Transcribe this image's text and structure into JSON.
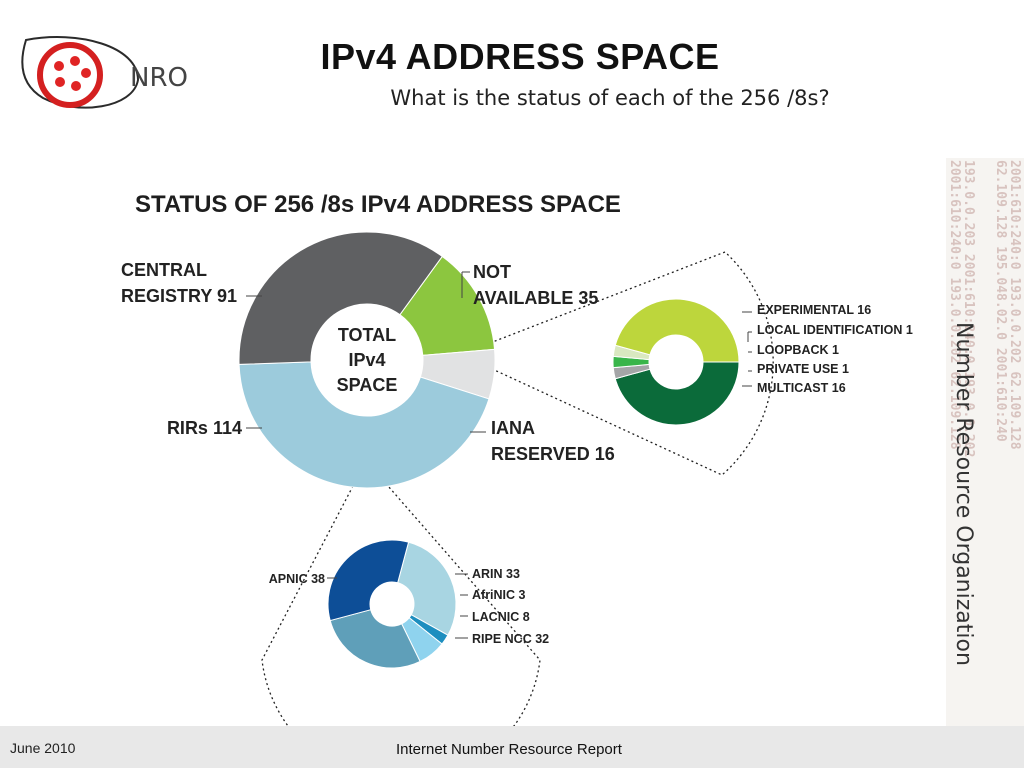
{
  "header": {
    "title": "IPv4 ADDRESS SPACE",
    "subtitle": "What is the status of each of the 256 /8s?",
    "logo_text": "NRO"
  },
  "side": {
    "org_text": "Number Resource Organization",
    "bg_lines": [
      "2001:610:240:0  193.0.0.202  62.109.128",
      "62.109.128  195.048.02.0  2001:610:240",
      "193.0.0.203  2001:610:240:0  193.0.0.202",
      "2001:610:240:0  193.0.0.202  62.109.128"
    ]
  },
  "footer": {
    "date": "June 2010",
    "report": "Internet Number Resource Report"
  },
  "colors": {
    "central": "#5f6062",
    "not_available": "#8cc63f",
    "iana": "#e1e2e3",
    "rirs": "#9ccbdc",
    "experimental": "#0b6b3a",
    "local_identification": "#a4a5a7",
    "loopback": "#39b54a",
    "private_use": "#d9e8c0",
    "multicast": "#bdd63c",
    "arin": "#a8d5e2",
    "afrinic": "#1d8ebf",
    "lacnic": "#8fd3ee",
    "ripe": "#5f9fb9",
    "apnic": "#0d4e97"
  },
  "chart_data": [
    {
      "type": "pie",
      "title": "STATUS OF 256 /8s IPv4 ADDRESS SPACE",
      "center_label": [
        "TOTAL",
        "IPv4",
        "SPACE"
      ],
      "slices": [
        {
          "label": [
            "NOT",
            "AVAILABLE 35"
          ],
          "value": 35,
          "color_key": "not_available"
        },
        {
          "label": [
            "IANA",
            "RESERVED 16"
          ],
          "value": 16,
          "color_key": "iana"
        },
        {
          "label": [
            "RIRs 114"
          ],
          "value": 114,
          "color_key": "rirs"
        },
        {
          "label": [
            "CENTRAL",
            "REGISTRY 91"
          ],
          "value": 91,
          "color_key": "central"
        }
      ]
    },
    {
      "type": "pie",
      "title": "",
      "slices": [
        {
          "label": [
            "EXPERIMENTAL 16"
          ],
          "value": 16,
          "color_key": "experimental"
        },
        {
          "label": [
            "LOCAL IDENTIFICATION 1"
          ],
          "value": 1,
          "color_key": "local_identification"
        },
        {
          "label": [
            "LOOPBACK 1"
          ],
          "value": 1,
          "color_key": "loopback"
        },
        {
          "label": [
            "PRIVATE USE 1"
          ],
          "value": 1,
          "color_key": "private_use"
        },
        {
          "label": [
            "MULTICAST 16"
          ],
          "value": 16,
          "color_key": "multicast"
        }
      ]
    },
    {
      "type": "pie",
      "title": "",
      "slices": [
        {
          "label": [
            "ARIN 33"
          ],
          "value": 33,
          "color_key": "arin"
        },
        {
          "label": [
            "AfriNIC 3"
          ],
          "value": 3,
          "color_key": "afrinic"
        },
        {
          "label": [
            "LACNIC 8"
          ],
          "value": 8,
          "color_key": "lacnic"
        },
        {
          "label": [
            "RIPE NCC 32"
          ],
          "value": 32,
          "color_key": "ripe"
        },
        {
          "label": [
            "APNIC 38"
          ],
          "value": 38,
          "color_key": "apnic"
        }
      ]
    }
  ]
}
